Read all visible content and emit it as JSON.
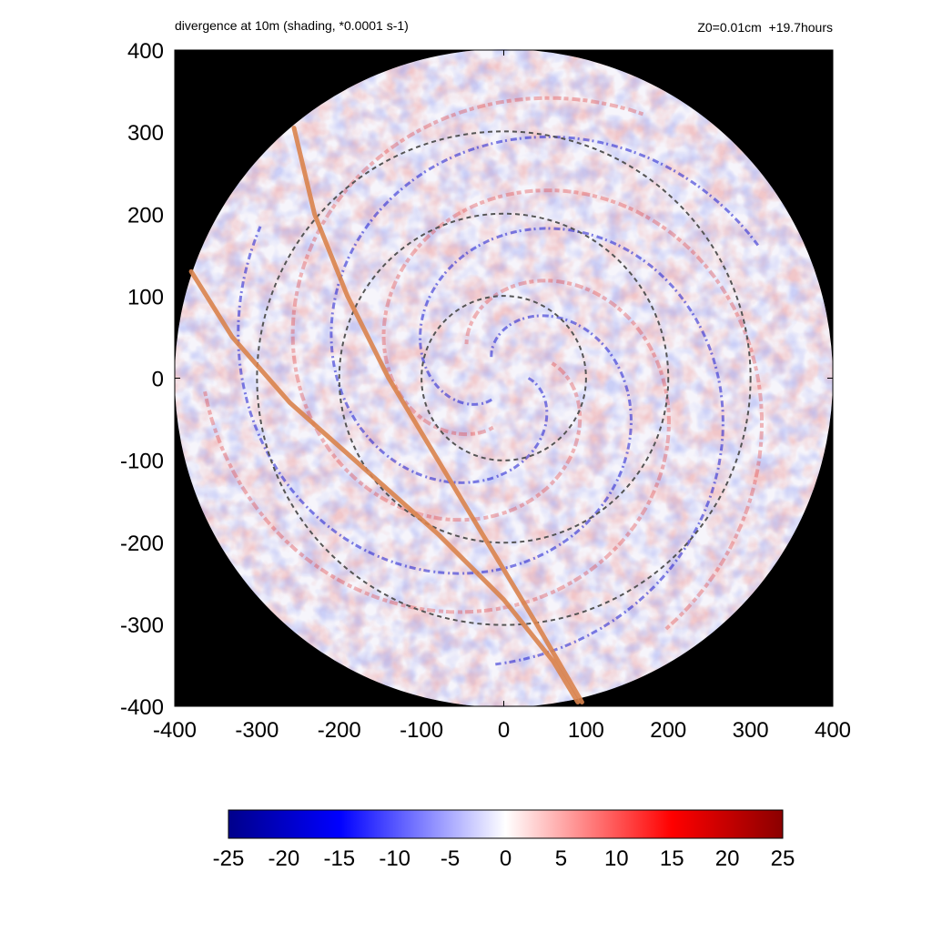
{
  "chart_data": {
    "type": "heatmap",
    "title": "divergence at 10m (shading, *0.0001 s-1)",
    "subtitle": "Z0=0.01cm  +19.7hours",
    "xlim": [
      -400,
      400
    ],
    "ylim": [
      -400,
      400
    ],
    "x_ticks": [
      "-400",
      "-300",
      "-200",
      "-100",
      "0",
      "100",
      "200",
      "300",
      "400"
    ],
    "y_ticks": [
      "400",
      "300",
      "200",
      "100",
      "0",
      "-100",
      "-200",
      "-300",
      "-400"
    ],
    "domain_radius": 400,
    "dashed_circle_radii": [
      100,
      200,
      300
    ],
    "tracks": [
      {
        "points": [
          [
            -255,
            305
          ],
          [
            -230,
            200
          ],
          [
            -190,
            100
          ],
          [
            -140,
            0
          ],
          [
            -80,
            -100
          ],
          [
            -20,
            -200
          ],
          [
            40,
            -300
          ],
          [
            95,
            -395
          ]
        ]
      },
      {
        "points": [
          [
            -380,
            130
          ],
          [
            -330,
            50
          ],
          [
            -260,
            -30
          ],
          [
            -170,
            -110
          ],
          [
            -80,
            -190
          ],
          [
            0,
            -270
          ],
          [
            60,
            -345
          ],
          [
            90,
            -395
          ]
        ]
      }
    ],
    "colorbar": {
      "min": -25,
      "max": 25,
      "tick_labels": [
        "-25",
        "-20",
        "-15",
        "-10",
        "-5",
        "0",
        "5",
        "10",
        "15",
        "20",
        "25"
      ],
      "colors": [
        "#00008b",
        "#0000ff",
        "#ffffff",
        "#ff0000",
        "#8b0000"
      ]
    },
    "background_color": "#000000",
    "track_color": "#d9834d"
  }
}
